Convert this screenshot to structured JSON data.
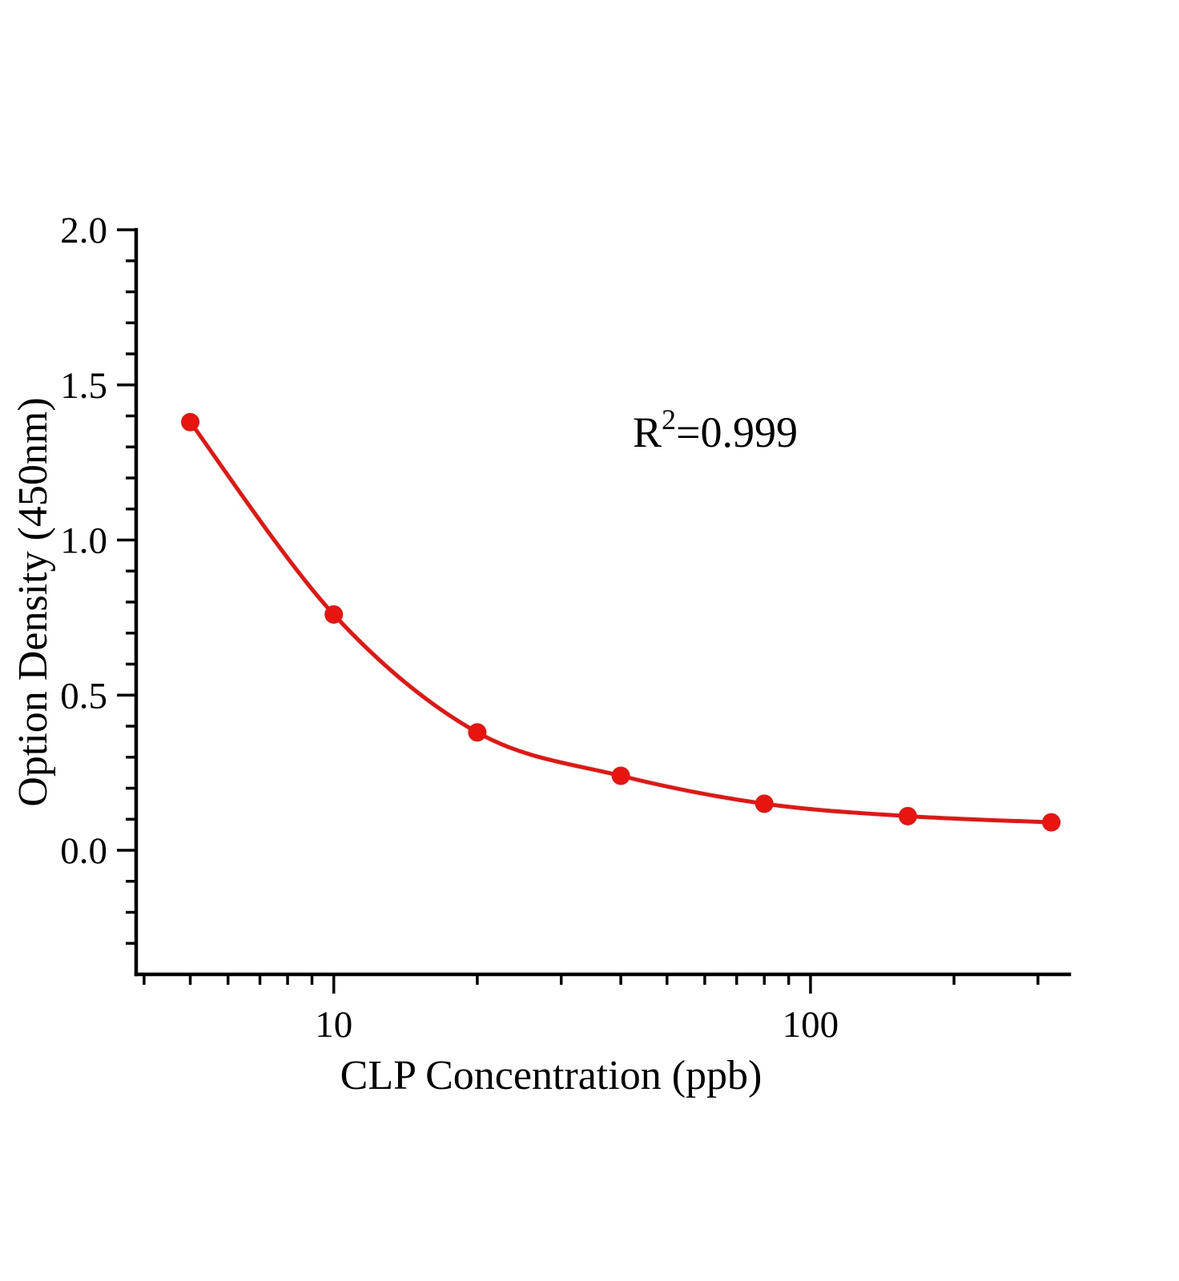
{
  "page": {
    "background": "#ffffff"
  },
  "chart_data": {
    "type": "scatter",
    "curve": "smooth-fit",
    "title": "",
    "xlabel": "CLP  Concentration（ppb）",
    "ylabel": "Option Density（450nm）",
    "annotation": {
      "text": "R²=0.999",
      "base": "R",
      "superscript": "2",
      "rest": "=0.999"
    },
    "x_scale": "log",
    "y_scale": "linear",
    "x": [
      5,
      10,
      20,
      40,
      80,
      160,
      320
    ],
    "y": [
      1.38,
      0.76,
      0.38,
      0.24,
      0.15,
      0.11,
      0.09
    ],
    "xlim": [
      3.85,
      349
    ],
    "ylim": [
      -0.4,
      2.0
    ],
    "x_major_ticks": [
      10,
      100
    ],
    "x_major_tick_labels": [
      "10",
      "100"
    ],
    "x_minor_ticks": [
      4,
      5,
      6,
      7,
      8,
      9,
      20,
      30,
      40,
      50,
      60,
      70,
      80,
      90,
      200,
      300
    ],
    "y_major_ticks": [
      0.0,
      0.5,
      1.0,
      1.5,
      2.0
    ],
    "y_major_tick_labels": [
      "0.0",
      "0.5",
      "1.0",
      "1.5",
      "2.0"
    ],
    "y_minor_step": 0.1,
    "grid": false,
    "legend": null,
    "line_color": "#e8140f",
    "marker_color": "#e8140f",
    "axis_color": "#000000"
  }
}
